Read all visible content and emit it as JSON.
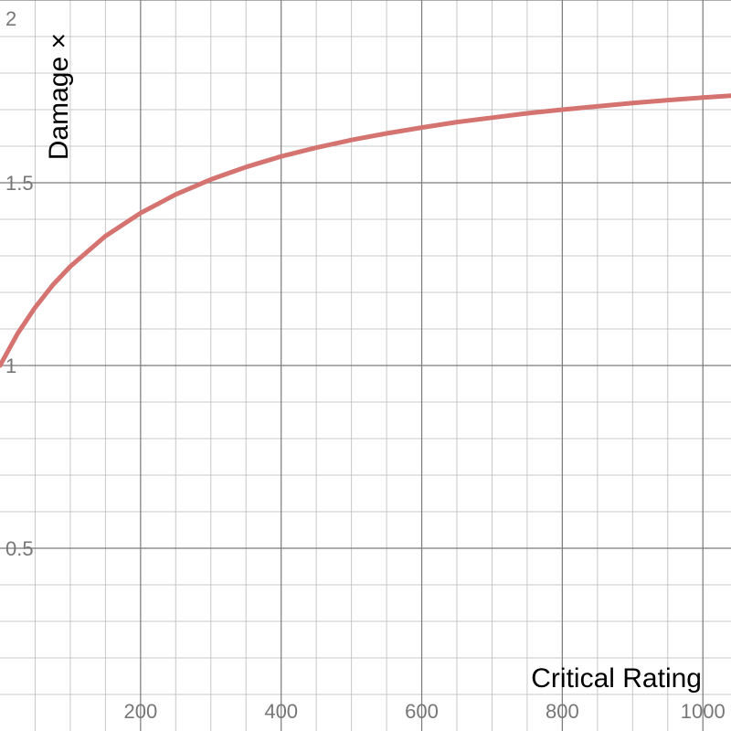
{
  "chart_data": {
    "type": "line",
    "xlabel": "Critical Rating",
    "ylabel": "Damage ×",
    "xlim": [
      0,
      1040
    ],
    "ylim": [
      0,
      2
    ],
    "grid": true,
    "x_ticks": [
      200,
      400,
      600,
      800,
      1000
    ],
    "x_tick_labels": [
      "200",
      "400",
      "600",
      "800",
      "1000"
    ],
    "y_ticks": [
      0.5,
      1,
      1.5,
      2
    ],
    "y_tick_labels": [
      "0.5",
      "1",
      "1.5",
      "2"
    ],
    "series": [
      {
        "color": "#d4736f",
        "x": [
          0,
          25,
          50,
          75,
          100,
          150,
          200,
          250,
          300,
          350,
          400,
          450,
          500,
          550,
          600,
          650,
          700,
          750,
          800,
          850,
          900,
          950,
          1000,
          1040
        ],
        "y": [
          1.0,
          1.087,
          1.159,
          1.22,
          1.271,
          1.354,
          1.417,
          1.468,
          1.509,
          1.543,
          1.572,
          1.596,
          1.617,
          1.635,
          1.651,
          1.666,
          1.678,
          1.69,
          1.7,
          1.709,
          1.718,
          1.726,
          1.733,
          1.738
        ]
      }
    ]
  }
}
